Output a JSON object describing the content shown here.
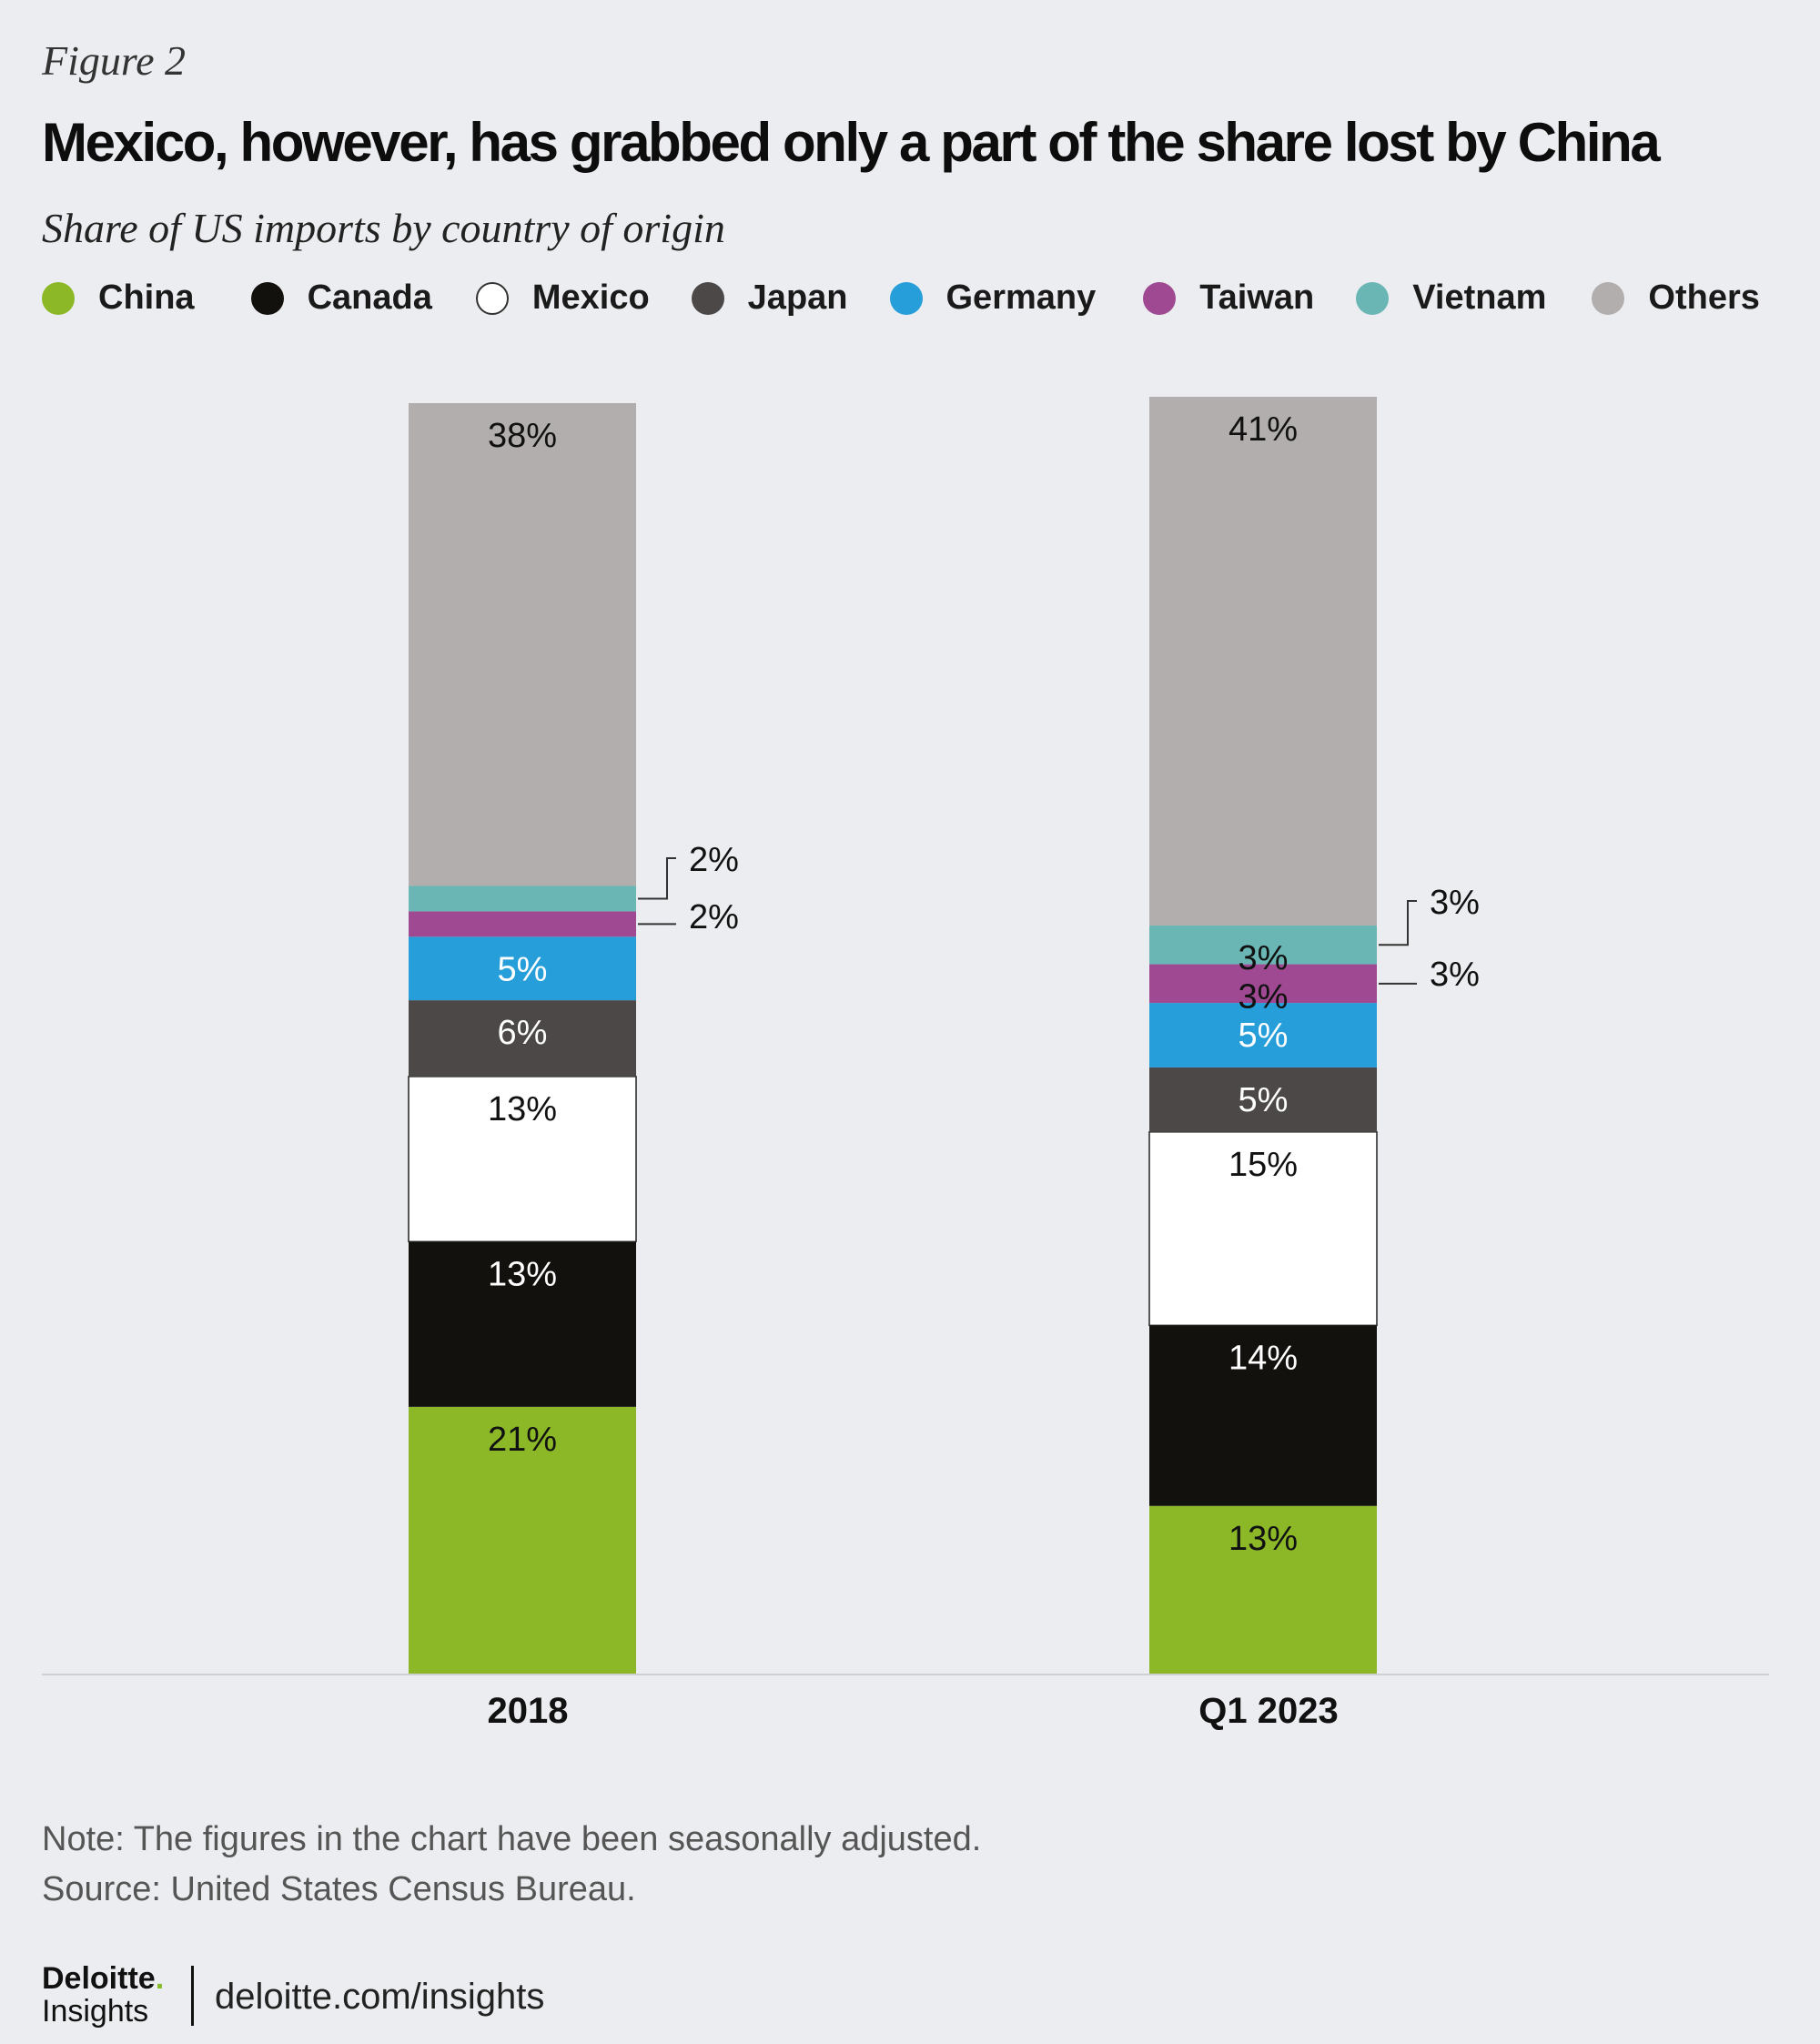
{
  "header": {
    "figure_label": "Figure 2",
    "title": "Mexico, however, has grabbed only a part of the share lost by China",
    "subtitle": "Share of US imports by country of origin"
  },
  "legend": [
    {
      "label": "China",
      "color": "#8cb827"
    },
    {
      "label": "Canada",
      "color": "#12110d"
    },
    {
      "label": "Mexico",
      "color": "#ffffff"
    },
    {
      "label": "Japan",
      "color": "#4b4847"
    },
    {
      "label": "Germany",
      "color": "#259ed9"
    },
    {
      "label": "Taiwan",
      "color": "#9e4992"
    },
    {
      "label": "Vietnam",
      "color": "#69b6b4"
    },
    {
      "label": "Others",
      "color": "#b2aead"
    }
  ],
  "chart_data": {
    "type": "bar",
    "stacked": true,
    "categories": [
      "2018",
      "Q1 2023"
    ],
    "series": [
      {
        "name": "China",
        "color": "#8cb827",
        "values": [
          21,
          13
        ],
        "labels": [
          "21%",
          "13%"
        ]
      },
      {
        "name": "Canada",
        "color": "#12110d",
        "values": [
          13,
          14
        ],
        "labels": [
          "13%",
          "14%"
        ]
      },
      {
        "name": "Mexico",
        "color": "#ffffff",
        "values": [
          13,
          15
        ],
        "labels": [
          "13%",
          "15%"
        ]
      },
      {
        "name": "Japan",
        "color": "#4b4847",
        "values": [
          6,
          5
        ],
        "labels": [
          "6%",
          "5%"
        ]
      },
      {
        "name": "Germany",
        "color": "#259ed9",
        "values": [
          5,
          5
        ],
        "labels": [
          "5%",
          "5%"
        ]
      },
      {
        "name": "Taiwan",
        "color": "#9e4992",
        "values": [
          2,
          3
        ],
        "labels": [
          "2%",
          "3%"
        ]
      },
      {
        "name": "Vietnam",
        "color": "#69b6b4",
        "values": [
          2,
          3
        ],
        "labels": [
          "2%",
          "3%"
        ]
      },
      {
        "name": "Others",
        "color": "#b2aead",
        "values": [
          38,
          41
        ],
        "labels": [
          "38%",
          "41%"
        ]
      }
    ],
    "xlabel": "",
    "ylabel": "",
    "grid": false
  },
  "footer": {
    "note": "Note: The figures in the chart have been seasonally adjusted.",
    "source": "Source: United States Census Bureau.",
    "logo_brand": "Deloitte",
    "logo_dot": ".",
    "logo_sub": "Insights",
    "url": "deloitte.com/insights"
  }
}
